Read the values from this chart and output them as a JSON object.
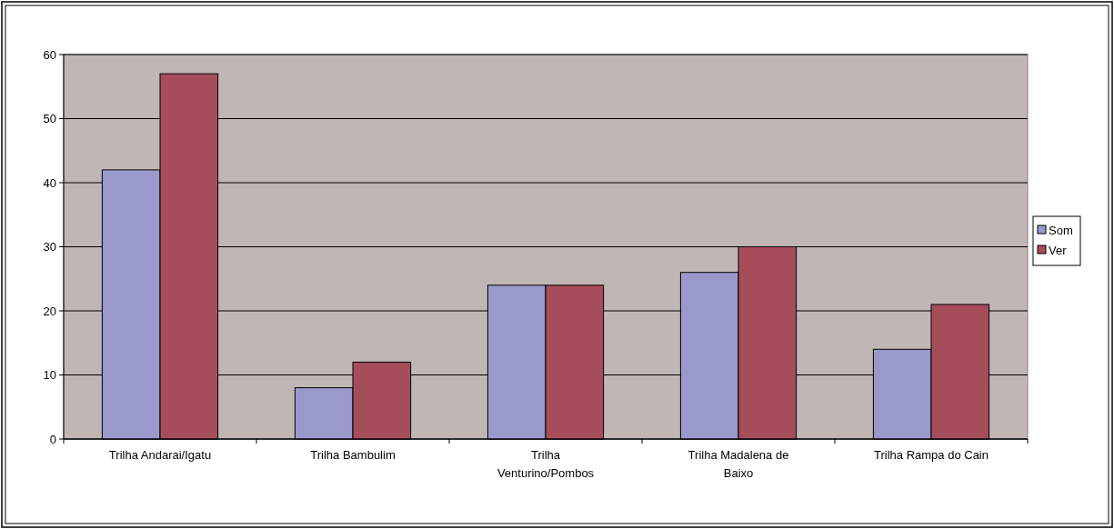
{
  "chart_data": {
    "type": "bar",
    "categories": [
      "Trilha Andarai/Igatu",
      "Trilha Bambulim",
      "Trilha Venturino/Pombos",
      "Trilha Madalena de Baixo",
      "Trilha Rampa do Cain"
    ],
    "series": [
      {
        "name": "Som",
        "color": "#9999cc",
        "values": [
          42,
          8,
          24,
          26,
          14
        ]
      },
      {
        "name": "Ver",
        "color": "#a64d5b",
        "values": [
          57,
          12,
          24,
          30,
          21
        ]
      }
    ],
    "ylim": [
      0,
      60
    ],
    "yticks": [
      0,
      10,
      20,
      30,
      40,
      50,
      60
    ],
    "grid": "y",
    "legend": "right"
  }
}
